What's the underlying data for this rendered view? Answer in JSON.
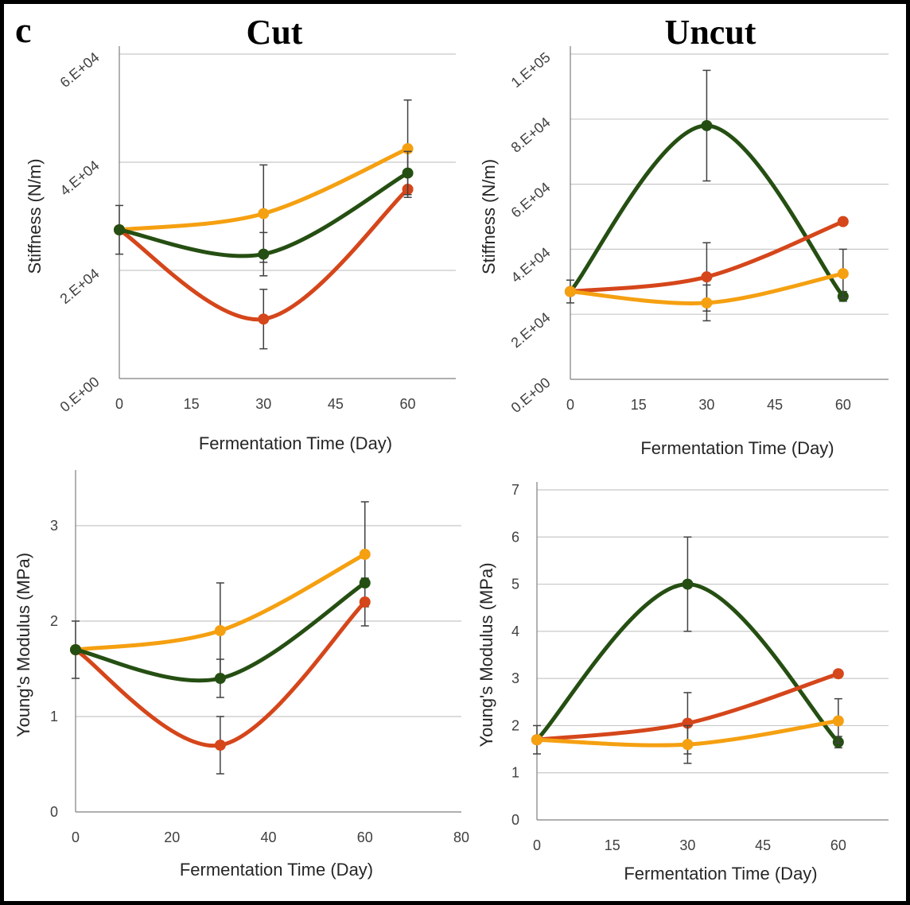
{
  "figure": {
    "panel_letter": "c",
    "column_titles": [
      "Cut",
      "Uncut"
    ]
  },
  "colors": {
    "orange": "#F5A011",
    "red": "#D5461B",
    "green": "#254F12",
    "grid": "#C8C8C8",
    "axis": "#7F7F7F",
    "error": "#404040"
  },
  "chart_data": [
    {
      "id": "cut-stiffness",
      "type": "line",
      "title": "",
      "xlabel": "Fermentation Time (Day)",
      "ylabel": "Stiffness (N/m)",
      "xlim": [
        0,
        70
      ],
      "ylim": [
        0,
        60000
      ],
      "x_ticks": [
        0,
        15,
        30,
        45,
        60
      ],
      "x_tick_labels": [
        "0",
        "15",
        "30",
        "45",
        "60"
      ],
      "y_ticks": [
        0,
        20000,
        40000,
        60000
      ],
      "y_tick_labels": [
        "0.E+00",
        "2.E+04",
        "4.E+04",
        "6.E+04"
      ],
      "y_tick_rotated": true,
      "gridlines": "horizontal",
      "series": [
        {
          "color": "orange",
          "x": [
            0,
            30,
            60
          ],
          "y": [
            27500,
            30500,
            42500
          ],
          "err": [
            4500,
            9000,
            9000
          ]
        },
        {
          "color": "red",
          "x": [
            0,
            30,
            60
          ],
          "y": [
            27500,
            11000,
            35000
          ],
          "err": [
            0,
            5500,
            0
          ]
        },
        {
          "color": "green",
          "x": [
            0,
            30,
            60
          ],
          "y": [
            27500,
            23000,
            38000
          ],
          "err": [
            0,
            4000,
            4000
          ]
        }
      ]
    },
    {
      "id": "uncut-stiffness",
      "type": "line",
      "title": "",
      "xlabel": "Fermentation Time (Day)",
      "ylabel": "Stiffness (N/m)",
      "xlim": [
        0,
        70
      ],
      "ylim": [
        0,
        100000
      ],
      "x_ticks": [
        0,
        15,
        30,
        45,
        60
      ],
      "x_tick_labels": [
        "0",
        "15",
        "30",
        "45",
        "60"
      ],
      "y_ticks": [
        0,
        20000,
        40000,
        60000,
        80000,
        100000
      ],
      "y_tick_labels": [
        "0.E+00",
        "2.E+04",
        "4.E+04",
        "6.E+04",
        "8.E+04",
        "1.E+05"
      ],
      "y_tick_rotated": true,
      "gridlines": "horizontal",
      "series": [
        {
          "color": "green",
          "x": [
            0,
            30,
            60
          ],
          "y": [
            27000,
            78000,
            25500
          ],
          "err": [
            3500,
            17000,
            1500
          ]
        },
        {
          "color": "red",
          "x": [
            0,
            30,
            60
          ],
          "y": [
            27000,
            31500,
            48500
          ],
          "err": [
            0,
            10500,
            0
          ]
        },
        {
          "color": "orange",
          "x": [
            0,
            30,
            60
          ],
          "y": [
            27000,
            23500,
            32500
          ],
          "err": [
            0,
            5500,
            7500
          ]
        }
      ]
    },
    {
      "id": "cut-modulus",
      "type": "line",
      "title": "",
      "xlabel": "Fermentation Time (Day)",
      "ylabel": "Young's Modulus (MPa)",
      "xlim": [
        0,
        80
      ],
      "ylim": [
        0,
        3.5
      ],
      "x_ticks": [
        0,
        20,
        40,
        60,
        80
      ],
      "x_tick_labels": [
        "0",
        "20",
        "40",
        "60",
        "80"
      ],
      "y_ticks": [
        0,
        1,
        2,
        3
      ],
      "y_tick_labels": [
        "0",
        "1",
        "2",
        "3"
      ],
      "y_tick_rotated": false,
      "gridlines": "horizontal",
      "series": [
        {
          "color": "orange",
          "x": [
            0,
            30,
            60
          ],
          "y": [
            1.7,
            1.9,
            2.7
          ],
          "err": [
            0.3,
            0.5,
            0.55
          ]
        },
        {
          "color": "red",
          "x": [
            0,
            30,
            60
          ],
          "y": [
            1.7,
            0.7,
            2.2
          ],
          "err": [
            0,
            0.3,
            0.25
          ]
        },
        {
          "color": "green",
          "x": [
            0,
            30,
            60
          ],
          "y": [
            1.7,
            1.4,
            2.4
          ],
          "err": [
            0,
            0.2,
            0
          ]
        }
      ]
    },
    {
      "id": "uncut-modulus",
      "type": "line",
      "title": "",
      "xlabel": "Fermentation Time (Day)",
      "ylabel": "Young's Modulus (MPa)",
      "xlim": [
        0,
        70
      ],
      "ylim": [
        0,
        7
      ],
      "x_ticks": [
        0,
        15,
        30,
        45,
        60
      ],
      "x_tick_labels": [
        "0",
        "15",
        "30",
        "45",
        "60"
      ],
      "y_ticks": [
        0,
        1,
        2,
        3,
        4,
        5,
        6,
        7
      ],
      "y_tick_labels": [
        "0",
        "1",
        "2",
        "3",
        "4",
        "5",
        "6",
        "7"
      ],
      "y_tick_rotated": false,
      "gridlines": "horizontal",
      "series": [
        {
          "color": "green",
          "x": [
            0,
            30,
            60
          ],
          "y": [
            1.7,
            5.0,
            1.65
          ],
          "err": [
            0.3,
            1.0,
            0.12
          ]
        },
        {
          "color": "red",
          "x": [
            0,
            30,
            60
          ],
          "y": [
            1.7,
            2.05,
            3.1
          ],
          "err": [
            0,
            0.65,
            0
          ]
        },
        {
          "color": "orange",
          "x": [
            0,
            30,
            60
          ],
          "y": [
            1.7,
            1.6,
            2.1
          ],
          "err": [
            0,
            0.4,
            0.47
          ]
        }
      ]
    }
  ]
}
